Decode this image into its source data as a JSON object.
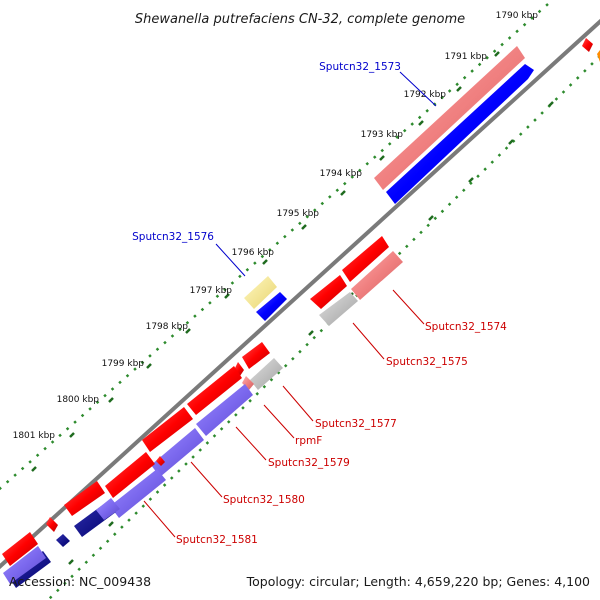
{
  "title": "Shewanella putrefaciens CN-32, complete genome",
  "ticks": [
    "1790 kbp",
    "1791 kbp",
    "1792 kbp",
    "1793 kbp",
    "1794 kbp",
    "1795 kbp",
    "1796 kbp",
    "1797 kbp",
    "1798 kbp",
    "1799 kbp",
    "1800 kbp",
    "1801 kbp"
  ],
  "gene_labels": {
    "g1573": "Sputcn32_1573",
    "g1576": "Sputcn32_1576",
    "g1574": "Sputcn32_1574",
    "g1575": "Sputcn32_1575",
    "g1577": "Sputcn32_1577",
    "rpmF": "rpmF",
    "g1579": "Sputcn32_1579",
    "g1580": "Sputcn32_1580",
    "g1581": "Sputcn32_1581"
  },
  "footer": {
    "accession": "Accession: NC_009438",
    "topology": "Topology: circular; Length: 4,659,220 bp; Genes: 4,100"
  },
  "colors": {
    "cds_red": "#ff0000",
    "cds_pink": "#f08080",
    "cds_blue": "#0000ff",
    "cds_lavender": "#7b68ee",
    "cds_navy": "#00008b",
    "cds_gray": "#bfbfbf",
    "cds_yellow": "#f5e68a",
    "backbone": "#808080",
    "tick": "#2e8b2e",
    "label_blue": "#0000cc",
    "label_red": "#cc0000",
    "accent_orange": "#ff8c00"
  }
}
